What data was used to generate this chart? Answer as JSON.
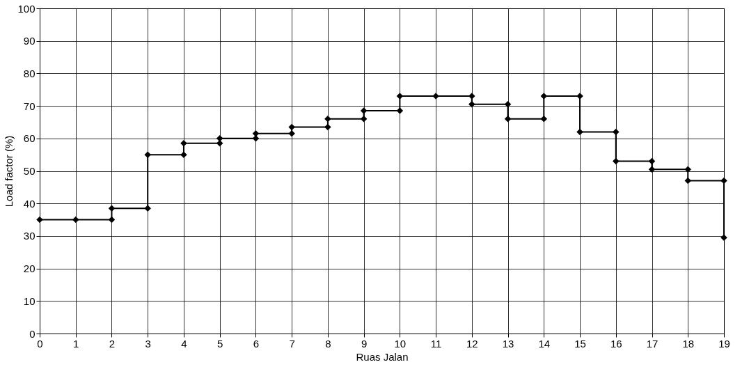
{
  "chart_data": {
    "type": "line",
    "xlabel": "Ruas Jalan",
    "ylabel": "Load factor (%)",
    "x": [
      0,
      1,
      2,
      2,
      3,
      3,
      4,
      4,
      5,
      5,
      6,
      6,
      7,
      7,
      8,
      8,
      9,
      9,
      10,
      10,
      11,
      12,
      12,
      13,
      13,
      14,
      14,
      15,
      15,
      16,
      16,
      17,
      17,
      18,
      18,
      19,
      19
    ],
    "series": [
      {
        "color": "#000000",
        "values": [
          35,
          35,
          35,
          38.5,
          38.5,
          55,
          55,
          58.5,
          58.5,
          60,
          60,
          61.5,
          61.5,
          63.5,
          63.5,
          66,
          66,
          68.5,
          68.5,
          73,
          73,
          73,
          70.5,
          70.5,
          66,
          66,
          73,
          73,
          62,
          62,
          53,
          53,
          50.5,
          50.5,
          47,
          47,
          29.5
        ]
      }
    ],
    "xlim": [
      0,
      19
    ],
    "xticks": [
      0,
      1,
      2,
      3,
      4,
      5,
      6,
      7,
      8,
      9,
      10,
      11,
      12,
      13,
      14,
      15,
      16,
      17,
      18,
      19
    ],
    "ylim": [
      0,
      100
    ],
    "yticks": [
      0,
      10,
      20,
      30,
      40,
      50,
      60,
      70,
      80,
      90,
      100
    ],
    "grid": true,
    "marker": "diamond",
    "line_style": "solid"
  }
}
